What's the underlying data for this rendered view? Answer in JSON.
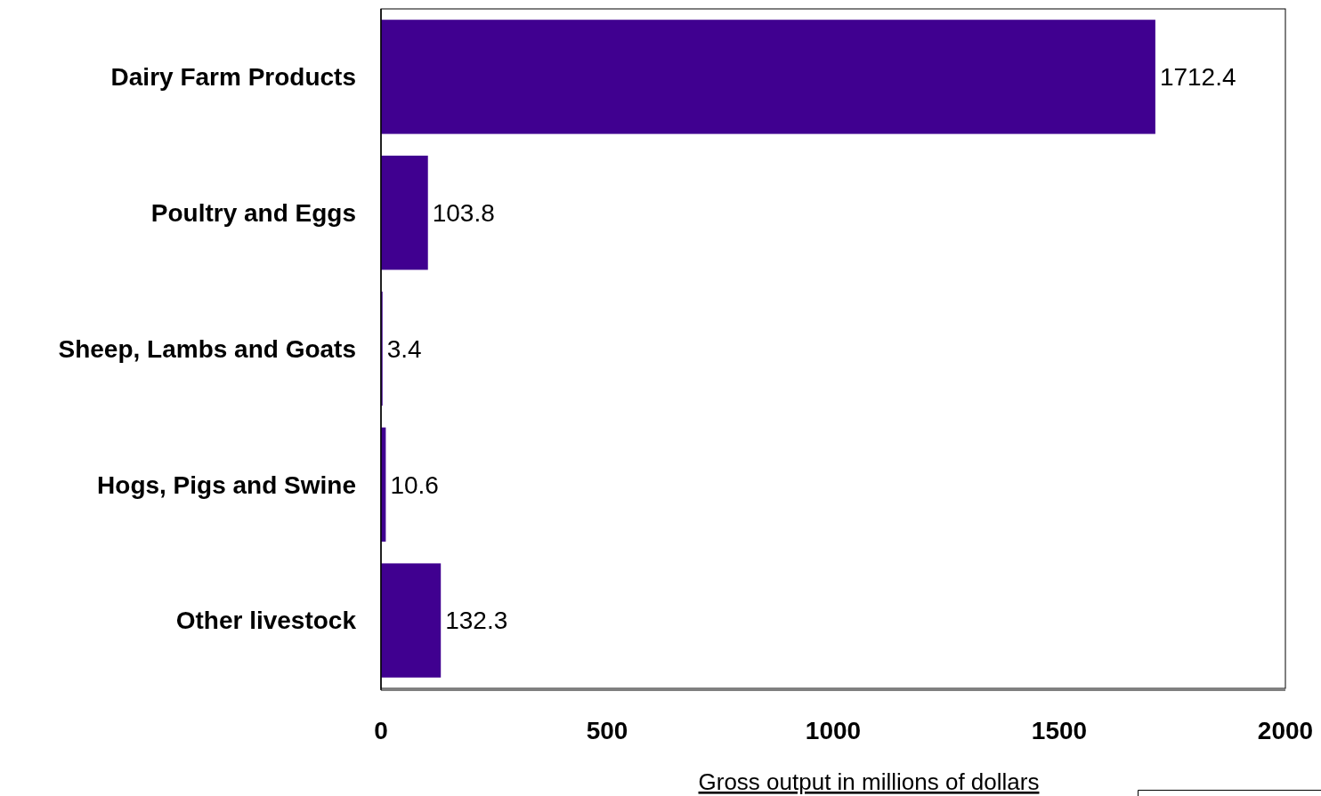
{
  "chart_data": {
    "type": "bar",
    "orientation": "horizontal",
    "categories": [
      "Dairy Farm Products",
      "Poultry and Eggs",
      "Sheep, Lambs and Goats",
      "Hogs, Pigs and Swine",
      "Other livestock"
    ],
    "values": [
      1712.4,
      103.8,
      3.4,
      10.6,
      132.3
    ],
    "color": "#400090",
    "xlabel": "Gross output in millions of dollars",
    "xlim": [
      0,
      2000
    ],
    "xticks": [
      0,
      500,
      1000,
      1500,
      2000
    ],
    "data_labels": true
  }
}
